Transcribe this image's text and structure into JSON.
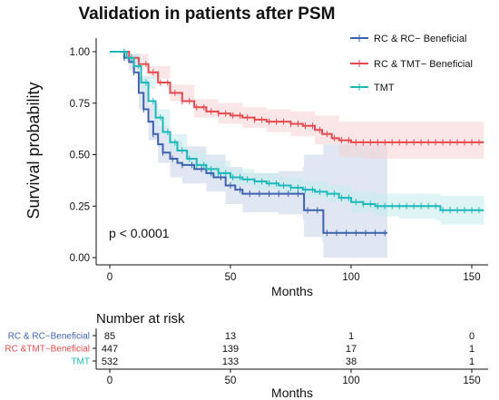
{
  "chart_data": {
    "type": "line",
    "subtype": "kaplan-meier",
    "title": "Validation in  patients after PSM",
    "xlabel": "Months",
    "ylabel": "Survival probability",
    "xlim": [
      0,
      155
    ],
    "ylim": [
      0,
      1.05
    ],
    "xticks": [
      0,
      50,
      100,
      150
    ],
    "yticks": [
      "0.00",
      "0.25",
      "0.50",
      "0.75",
      "1.00"
    ],
    "grid": false,
    "legend_position": "top-right",
    "annotation": "p < 0.0001",
    "series": [
      {
        "name": "RC & RC− Beneficial",
        "color": "#3f62ad",
        "band_color": "#c7d3ea",
        "points": [
          [
            0,
            1.0
          ],
          [
            4,
            1.0
          ],
          [
            6,
            0.97
          ],
          [
            8,
            0.95
          ],
          [
            10,
            0.9
          ],
          [
            12,
            0.8
          ],
          [
            14,
            0.72
          ],
          [
            16,
            0.66
          ],
          [
            18,
            0.6
          ],
          [
            20,
            0.55
          ],
          [
            22,
            0.51
          ],
          [
            25,
            0.48
          ],
          [
            28,
            0.46
          ],
          [
            30,
            0.45
          ],
          [
            35,
            0.43
          ],
          [
            40,
            0.41
          ],
          [
            43,
            0.39
          ],
          [
            48,
            0.35
          ],
          [
            52,
            0.33
          ],
          [
            55,
            0.31
          ],
          [
            70,
            0.31
          ],
          [
            80,
            0.31
          ],
          [
            80.5,
            0.23
          ],
          [
            88,
            0.23
          ],
          [
            88.5,
            0.12
          ],
          [
            115,
            0.12
          ]
        ],
        "lower": [
          [
            0,
            1.0
          ],
          [
            4,
            0.99
          ],
          [
            8,
            0.91
          ],
          [
            12,
            0.72
          ],
          [
            16,
            0.57
          ],
          [
            20,
            0.46
          ],
          [
            25,
            0.39
          ],
          [
            30,
            0.36
          ],
          [
            40,
            0.32
          ],
          [
            48,
            0.26
          ],
          [
            55,
            0.22
          ],
          [
            70,
            0.21
          ],
          [
            80,
            0.18
          ],
          [
            80.5,
            0.1
          ],
          [
            88,
            0.08
          ],
          [
            88.5,
            0.0
          ],
          [
            115,
            0.0
          ]
        ],
        "upper": [
          [
            0,
            1.0
          ],
          [
            4,
            1.0
          ],
          [
            8,
            0.99
          ],
          [
            12,
            0.88
          ],
          [
            16,
            0.75
          ],
          [
            20,
            0.64
          ],
          [
            25,
            0.57
          ],
          [
            30,
            0.54
          ],
          [
            40,
            0.5
          ],
          [
            48,
            0.44
          ],
          [
            55,
            0.41
          ],
          [
            70,
            0.42
          ],
          [
            80,
            0.44
          ],
          [
            80.5,
            0.5
          ],
          [
            88,
            0.5
          ],
          [
            88.5,
            0.55
          ],
          [
            115,
            0.55
          ]
        ]
      },
      {
        "name": "RC & TMT− Beneficial",
        "color": "#e34a4f",
        "band_color": "#f8d2d3",
        "points": [
          [
            0,
            1.0
          ],
          [
            5,
            1.0
          ],
          [
            8,
            0.97
          ],
          [
            12,
            0.94
          ],
          [
            16,
            0.9
          ],
          [
            20,
            0.85
          ],
          [
            25,
            0.8
          ],
          [
            30,
            0.76
          ],
          [
            35,
            0.73
          ],
          [
            40,
            0.71
          ],
          [
            45,
            0.7
          ],
          [
            50,
            0.69
          ],
          [
            55,
            0.68
          ],
          [
            60,
            0.67
          ],
          [
            65,
            0.66
          ],
          [
            70,
            0.66
          ],
          [
            75,
            0.65
          ],
          [
            80,
            0.64
          ],
          [
            85,
            0.62
          ],
          [
            88,
            0.6
          ],
          [
            92,
            0.58
          ],
          [
            95,
            0.57
          ],
          [
            100,
            0.56
          ],
          [
            155,
            0.56
          ]
        ],
        "lower": [
          [
            0,
            1.0
          ],
          [
            8,
            0.95
          ],
          [
            16,
            0.87
          ],
          [
            25,
            0.76
          ],
          [
            35,
            0.68
          ],
          [
            45,
            0.65
          ],
          [
            55,
            0.63
          ],
          [
            65,
            0.61
          ],
          [
            75,
            0.59
          ],
          [
            85,
            0.55
          ],
          [
            95,
            0.49
          ],
          [
            105,
            0.48
          ],
          [
            130,
            0.48
          ],
          [
            155,
            0.48
          ]
        ],
        "upper": [
          [
            0,
            1.0
          ],
          [
            8,
            0.99
          ],
          [
            16,
            0.93
          ],
          [
            25,
            0.84
          ],
          [
            35,
            0.77
          ],
          [
            45,
            0.75
          ],
          [
            55,
            0.73
          ],
          [
            65,
            0.72
          ],
          [
            75,
            0.71
          ],
          [
            85,
            0.69
          ],
          [
            95,
            0.66
          ],
          [
            105,
            0.66
          ],
          [
            130,
            0.66
          ],
          [
            155,
            0.66
          ]
        ]
      },
      {
        "name": "TMT",
        "color": "#1fb8b8",
        "band_color": "#c5ecec",
        "points": [
          [
            0,
            1.0
          ],
          [
            4,
            1.0
          ],
          [
            7,
            0.97
          ],
          [
            10,
            0.93
          ],
          [
            13,
            0.85
          ],
          [
            16,
            0.76
          ],
          [
            19,
            0.68
          ],
          [
            22,
            0.61
          ],
          [
            25,
            0.56
          ],
          [
            28,
            0.52
          ],
          [
            32,
            0.48
          ],
          [
            36,
            0.45
          ],
          [
            40,
            0.43
          ],
          [
            45,
            0.41
          ],
          [
            50,
            0.39
          ],
          [
            55,
            0.38
          ],
          [
            60,
            0.37
          ],
          [
            65,
            0.36
          ],
          [
            70,
            0.35
          ],
          [
            75,
            0.34
          ],
          [
            80,
            0.33
          ],
          [
            85,
            0.32
          ],
          [
            90,
            0.31
          ],
          [
            95,
            0.29
          ],
          [
            100,
            0.27
          ],
          [
            105,
            0.26
          ],
          [
            110,
            0.25
          ],
          [
            120,
            0.25
          ],
          [
            135,
            0.25
          ],
          [
            137,
            0.23
          ],
          [
            155,
            0.23
          ]
        ],
        "lower": [
          [
            0,
            1.0
          ],
          [
            7,
            0.95
          ],
          [
            13,
            0.82
          ],
          [
            19,
            0.64
          ],
          [
            25,
            0.52
          ],
          [
            32,
            0.44
          ],
          [
            40,
            0.39
          ],
          [
            50,
            0.35
          ],
          [
            60,
            0.33
          ],
          [
            70,
            0.31
          ],
          [
            80,
            0.29
          ],
          [
            90,
            0.27
          ],
          [
            100,
            0.22
          ],
          [
            110,
            0.2
          ],
          [
            120,
            0.19
          ],
          [
            135,
            0.18
          ],
          [
            137,
            0.16
          ],
          [
            155,
            0.16
          ]
        ],
        "upper": [
          [
            0,
            1.0
          ],
          [
            7,
            0.99
          ],
          [
            13,
            0.88
          ],
          [
            19,
            0.72
          ],
          [
            25,
            0.6
          ],
          [
            32,
            0.52
          ],
          [
            40,
            0.47
          ],
          [
            50,
            0.43
          ],
          [
            60,
            0.41
          ],
          [
            70,
            0.39
          ],
          [
            80,
            0.37
          ],
          [
            90,
            0.35
          ],
          [
            100,
            0.32
          ],
          [
            110,
            0.31
          ],
          [
            120,
            0.31
          ],
          [
            135,
            0.31
          ],
          [
            137,
            0.3
          ],
          [
            155,
            0.3
          ]
        ]
      }
    ],
    "risk_table": {
      "title": "Number at risk",
      "xlabel": "Months",
      "times": [
        0,
        50,
        100,
        150
      ],
      "rows": [
        {
          "label": "RC &  RC−Beneficial",
          "color": "#3f62ad",
          "values": [
            "85",
            "13",
            "1",
            "0"
          ]
        },
        {
          "label": "RC &TMT−Beneficial",
          "color": "#e34a4f",
          "values": [
            "447",
            "139",
            "17",
            "1"
          ]
        },
        {
          "label": "TMT",
          "color": "#1fb8b8",
          "values": [
            "532",
            "133",
            "38",
            "1"
          ]
        }
      ]
    }
  }
}
